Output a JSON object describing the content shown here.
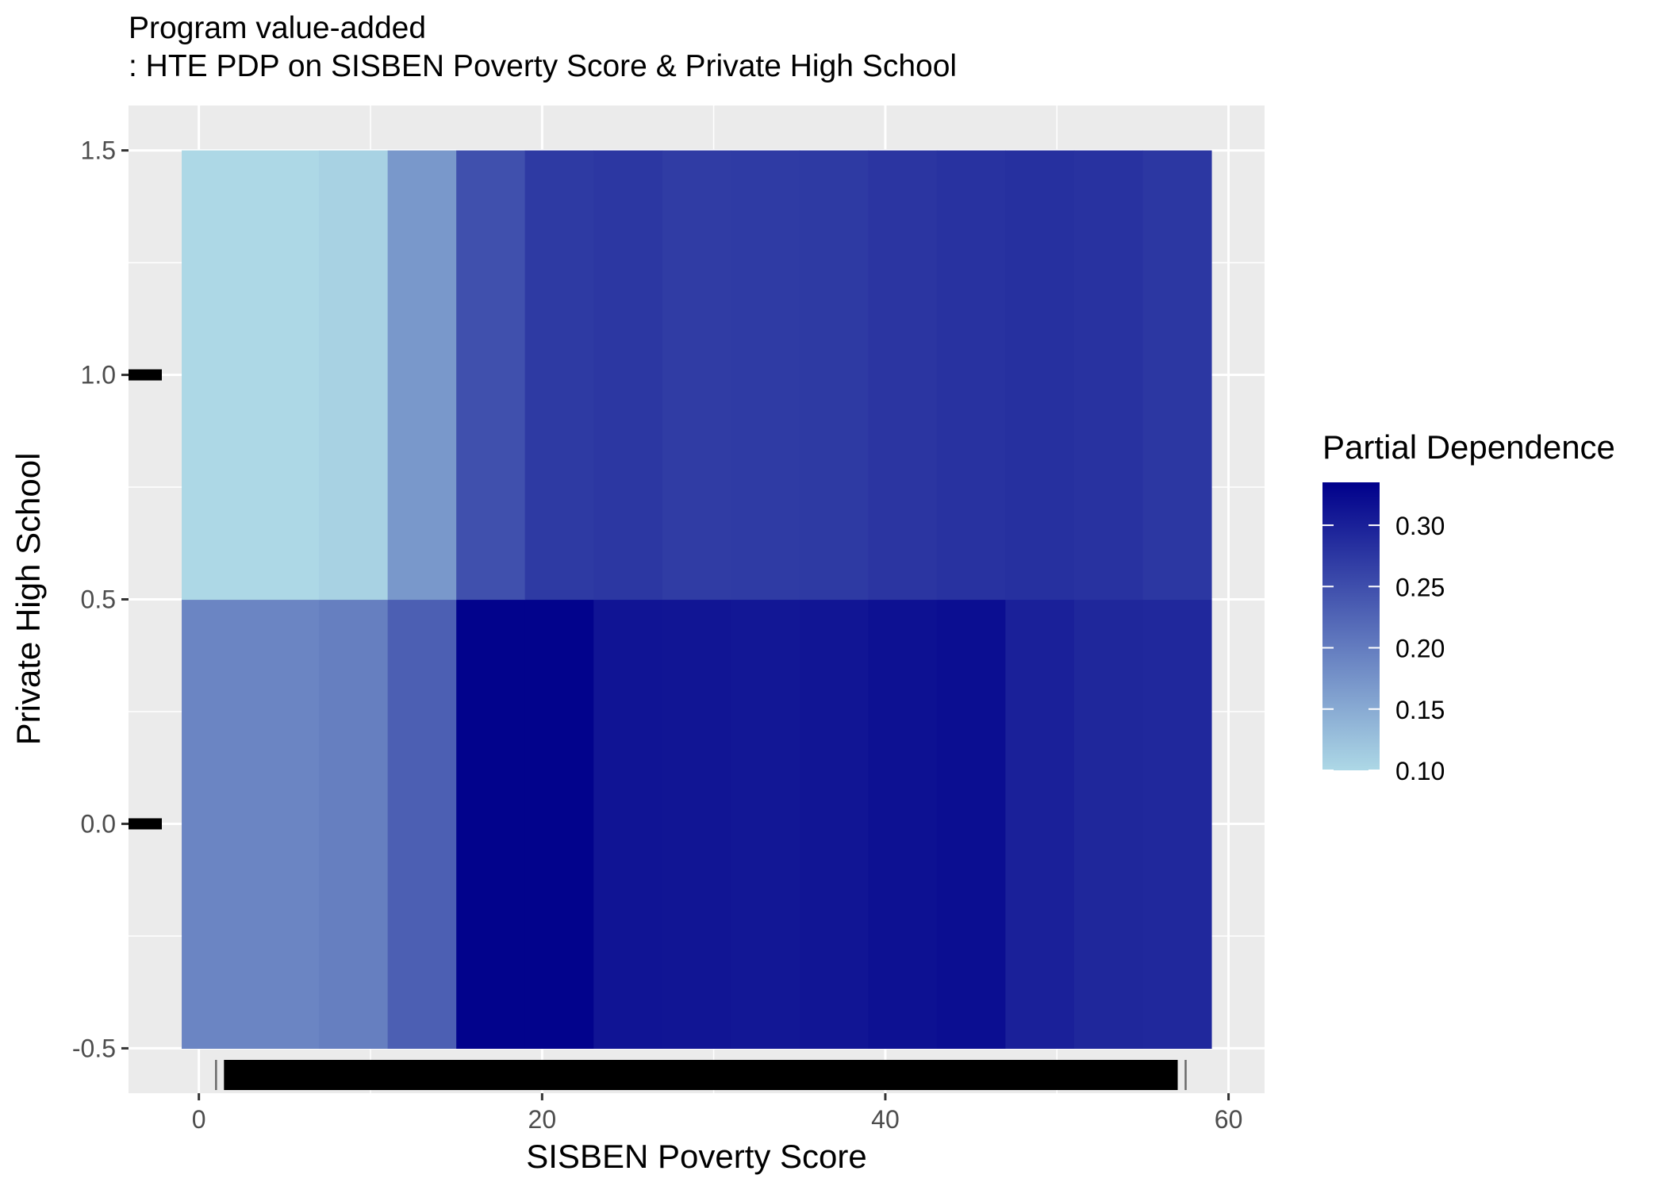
{
  "chart_data": {
    "type": "heatmap",
    "title": "Program value-added",
    "subtitle": ": HTE PDP on SISBEN Poverty Score & Private High School",
    "xlabel": "SISBEN Poverty Score",
    "ylabel": "Private High School",
    "xlim": [
      -4.1,
      62.1
    ],
    "ylim": [
      -0.6,
      1.6
    ],
    "x_ticks": [
      {
        "value": 0,
        "label": "0"
      },
      {
        "value": 20,
        "label": "20"
      },
      {
        "value": 40,
        "label": "40"
      },
      {
        "value": 60,
        "label": "60"
      }
    ],
    "y_ticks": [
      {
        "value": -0.5,
        "label": "-0.5"
      },
      {
        "value": 0.0,
        "label": "0.0"
      },
      {
        "value": 0.5,
        "label": "0.5"
      },
      {
        "value": 1.0,
        "label": "1.0"
      },
      {
        "value": 1.5,
        "label": "1.5"
      }
    ],
    "grid": true,
    "x_bins": [
      [
        -1,
        7
      ],
      [
        7,
        11
      ],
      [
        11,
        15
      ],
      [
        15,
        19
      ],
      [
        19,
        23
      ],
      [
        23,
        27
      ],
      [
        27,
        31
      ],
      [
        31,
        35
      ],
      [
        35,
        39
      ],
      [
        39,
        43
      ],
      [
        43,
        47
      ],
      [
        47,
        51
      ],
      [
        51,
        55
      ],
      [
        55,
        59
      ]
    ],
    "y_bins": [
      [
        -0.5,
        0.5
      ],
      [
        0.5,
        1.5
      ]
    ],
    "values": [
      [
        0.19,
        0.197,
        0.232,
        0.332,
        0.332,
        0.313,
        0.312,
        0.31,
        0.312,
        0.317,
        0.32,
        0.3,
        0.293,
        0.291
      ],
      [
        0.1,
        0.107,
        0.17,
        0.248,
        0.272,
        0.275,
        0.27,
        0.271,
        0.272,
        0.277,
        0.281,
        0.283,
        0.281,
        0.275
      ]
    ],
    "legend": {
      "title": "Partial Dependence",
      "position": "right",
      "min": 0.1,
      "max": 0.335,
      "ticks": [
        {
          "value": 0.1,
          "label": "0.10"
        },
        {
          "value": 0.15,
          "label": "0.15"
        },
        {
          "value": 0.2,
          "label": "0.20"
        },
        {
          "value": 0.25,
          "label": "0.25"
        },
        {
          "value": 0.3,
          "label": "0.30"
        }
      ],
      "low_color": "#add8e6",
      "high_color": "#00008b"
    },
    "rug_y": [
      0,
      1
    ],
    "rug_x_range": [
      1,
      57.5
    ]
  },
  "colors": {
    "panel_background": "#ebebeb",
    "gridline": "#ffffff",
    "rug": "#000000"
  }
}
